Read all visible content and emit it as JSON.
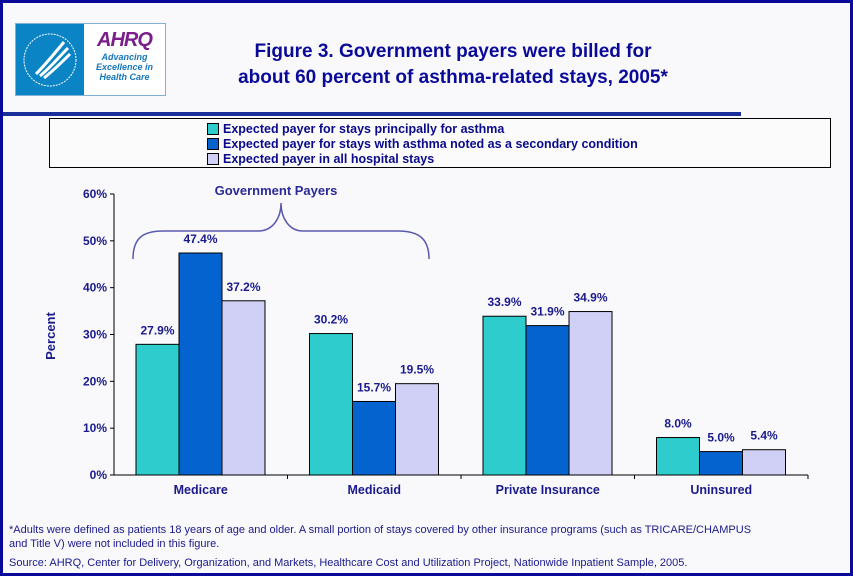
{
  "header": {
    "title_line1": "Figure 3. Government payers were billed for",
    "title_line2": "about 60 percent of asthma-related stays, 2005*",
    "logo": {
      "org": "AHRQ",
      "tagline": [
        "Advancing",
        "Excellence in",
        "Health Care"
      ]
    }
  },
  "chart_data": {
    "type": "bar",
    "categories": [
      "Medicare",
      "Medicaid",
      "Private Insurance",
      "Uninsured"
    ],
    "series": [
      {
        "name": "Expected payer for stays principally for asthma",
        "color": "#2ecccc",
        "values": [
          27.9,
          30.2,
          33.9,
          8.0
        ],
        "labels": [
          "27.9%",
          "30.2%",
          "33.9%",
          "8.0%"
        ]
      },
      {
        "name": "Expected payer for stays with asthma noted as a secondary condition",
        "color": "#0563d0",
        "values": [
          47.4,
          15.7,
          31.9,
          5.0
        ],
        "labels": [
          "47.4%",
          "15.7%",
          "31.9%",
          "5.0%"
        ]
      },
      {
        "name": "Expected payer in all hospital stays",
        "color": "#d0d0f6",
        "values": [
          37.2,
          19.5,
          34.9,
          5.4
        ],
        "labels": [
          "37.2%",
          "19.5%",
          "34.9%",
          "5.4%"
        ]
      }
    ],
    "ylabel": "Percent",
    "ylim": [
      0,
      60
    ],
    "yticks": [
      "0%",
      "10%",
      "20%",
      "30%",
      "40%",
      "50%",
      "60%"
    ],
    "annotation": "Government Payers",
    "grid": false,
    "legend": "top"
  },
  "footnote": [
    "*Adults were defined as patients 18 years of age and older. A small portion of stays covered by other insurance programs (such as TRICARE/CHAMPUS",
    " and Title V) were not included in this figure."
  ],
  "source": "Source: AHRQ, Center for Delivery, Organization, and Markets, Healthcare Cost and Utilization Project, Nationwide Inpatient Sample, 2005."
}
